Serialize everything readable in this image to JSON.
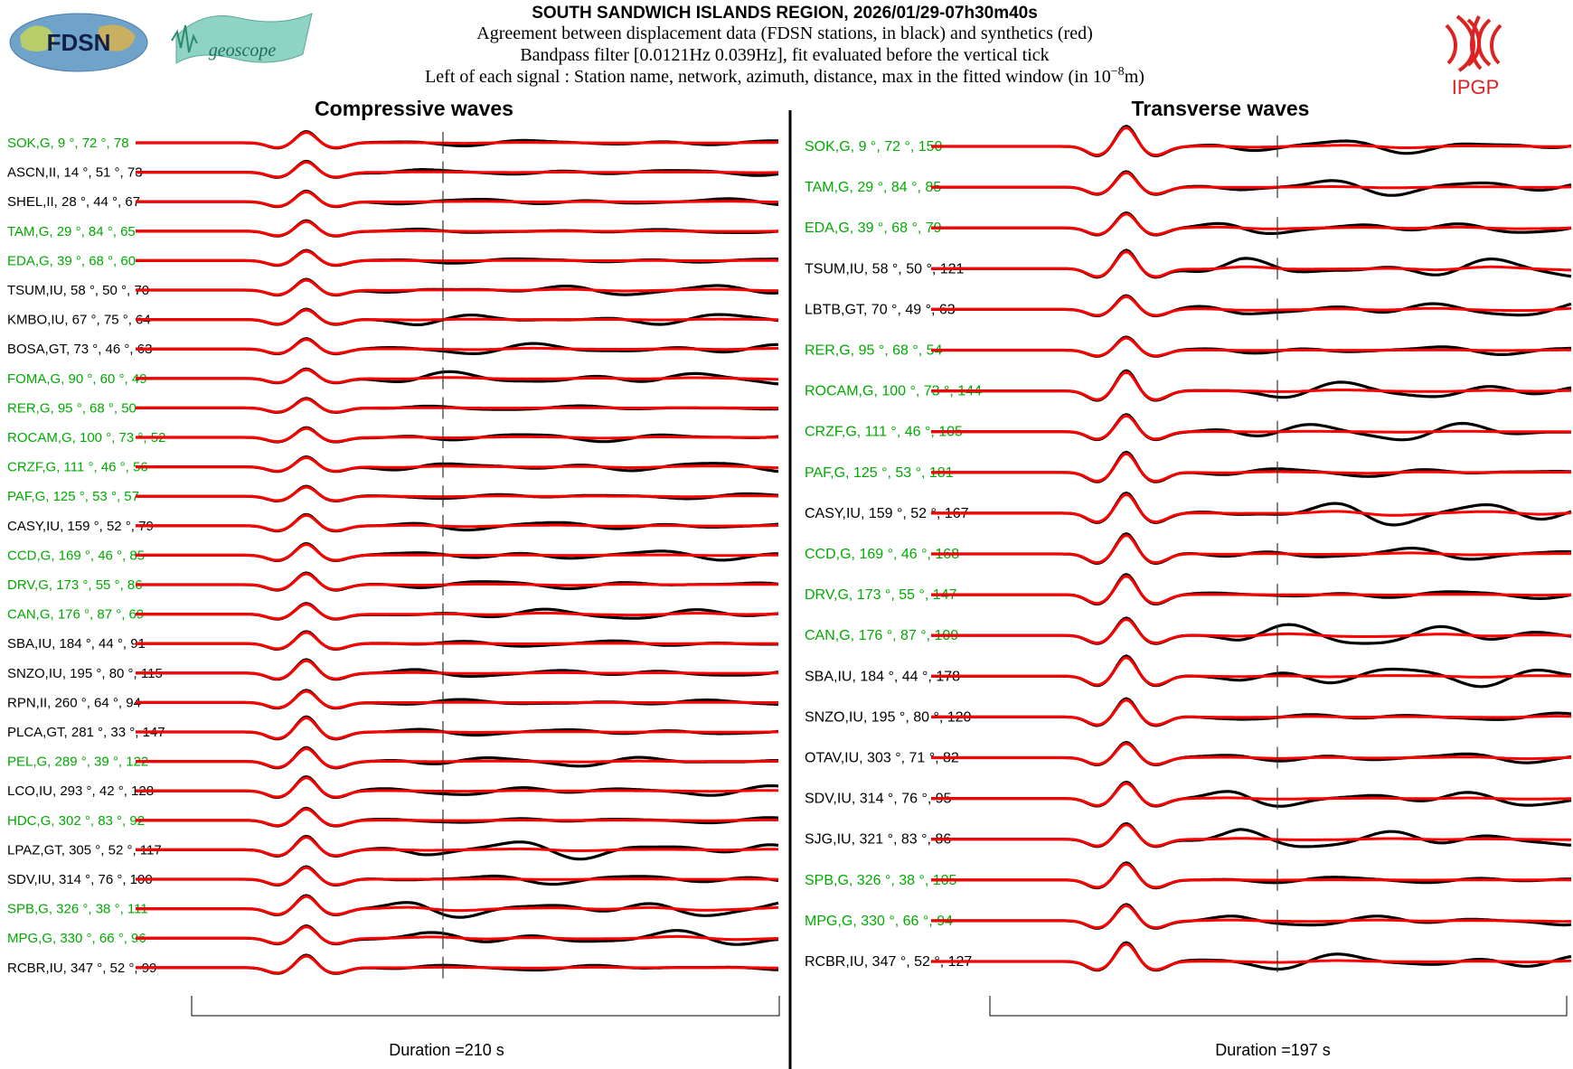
{
  "header": {
    "title": "SOUTH SANDWICH ISLANDS REGION, 2026/01/29-07h30m40s",
    "line1": "Agreement between displacement data (FDSN stations, in black) and synthetics (red)",
    "line2": "Bandpass filter [0.0121Hz 0.039Hz], fit evaluated before the vertical tick",
    "line3_prefix": "Left of each signal : Station name, network, azimuth, distance, max in the fitted window (in 10",
    "line3_exp": "−8",
    "line3_suffix": "m)"
  },
  "logos": {
    "fdsn": "FDSN",
    "geoscope": "geoscope",
    "ipgp": "IPGP"
  },
  "colors": {
    "data": "#000000",
    "synthetic": "#ff0000",
    "label_green": "#00aa00",
    "label_black": "#000000",
    "ipgp_red": "#e03030"
  },
  "chart_data": [
    {
      "type": "line",
      "title": "Compressive waves",
      "duration_label": "Duration =210 s",
      "duration_s": 210,
      "series_legend": [
        "data (black)",
        "synthetics (red)"
      ],
      "stations": [
        {
          "label": "SOK,G, 9 °, 72 °, 78",
          "name": "SOK",
          "net": "G",
          "az": 9,
          "dist": 72,
          "max": 78,
          "green": true
        },
        {
          "label": "ASCN,II, 14 °, 51 °, 73",
          "name": "ASCN",
          "net": "II",
          "az": 14,
          "dist": 51,
          "max": 73,
          "green": false
        },
        {
          "label": "SHEL,II, 28 °, 44 °, 67",
          "name": "SHEL",
          "net": "II",
          "az": 28,
          "dist": 44,
          "max": 67,
          "green": false
        },
        {
          "label": "TAM,G, 29 °, 84 °, 65",
          "name": "TAM",
          "net": "G",
          "az": 29,
          "dist": 84,
          "max": 65,
          "green": true
        },
        {
          "label": "EDA,G, 39 °, 68 °, 60",
          "name": "EDA",
          "net": "G",
          "az": 39,
          "dist": 68,
          "max": 60,
          "green": true
        },
        {
          "label": "TSUM,IU, 58 °, 50 °, 70",
          "name": "TSUM",
          "net": "IU",
          "az": 58,
          "dist": 50,
          "max": 70,
          "green": false
        },
        {
          "label": "KMBO,IU, 67 °, 75 °, 64",
          "name": "KMBO",
          "net": "IU",
          "az": 67,
          "dist": 75,
          "max": 64,
          "green": false
        },
        {
          "label": "BOSA,GT, 73 °, 46 °, 63",
          "name": "BOSA",
          "net": "GT",
          "az": 73,
          "dist": 46,
          "max": 63,
          "green": false
        },
        {
          "label": "FOMA,G, 90 °, 60 °, 49",
          "name": "FOMA",
          "net": "G",
          "az": 90,
          "dist": 60,
          "max": 49,
          "green": true
        },
        {
          "label": "RER,G, 95 °, 68 °, 50",
          "name": "RER",
          "net": "G",
          "az": 95,
          "dist": 68,
          "max": 50,
          "green": true
        },
        {
          "label": "ROCAM,G, 100 °, 73 °, 52",
          "name": "ROCAM",
          "net": "G",
          "az": 100,
          "dist": 73,
          "max": 52,
          "green": true
        },
        {
          "label": "CRZF,G, 111 °, 46 °, 56",
          "name": "CRZF",
          "net": "G",
          "az": 111,
          "dist": 46,
          "max": 56,
          "green": true
        },
        {
          "label": "PAF,G, 125 °, 53 °, 57",
          "name": "PAF",
          "net": "G",
          "az": 125,
          "dist": 53,
          "max": 57,
          "green": true
        },
        {
          "label": "CASY,IU, 159 °, 52 °, 79",
          "name": "CASY",
          "net": "IU",
          "az": 159,
          "dist": 52,
          "max": 79,
          "green": false
        },
        {
          "label": "CCD,G, 169 °, 46 °, 85",
          "name": "CCD",
          "net": "G",
          "az": 169,
          "dist": 46,
          "max": 85,
          "green": true
        },
        {
          "label": "DRV,G, 173 °, 55 °, 86",
          "name": "DRV",
          "net": "G",
          "az": 173,
          "dist": 55,
          "max": 86,
          "green": true
        },
        {
          "label": "CAN,G, 176 °, 87 °, 69",
          "name": "CAN",
          "net": "G",
          "az": 176,
          "dist": 87,
          "max": 69,
          "green": true
        },
        {
          "label": "SBA,IU, 184 °, 44 °, 91",
          "name": "SBA",
          "net": "IU",
          "az": 184,
          "dist": 44,
          "max": 91,
          "green": false
        },
        {
          "label": "SNZO,IU, 195 °, 80 °, 115",
          "name": "SNZO",
          "net": "IU",
          "az": 195,
          "dist": 80,
          "max": 115,
          "green": false
        },
        {
          "label": "RPN,II, 260 °, 64 °, 94",
          "name": "RPN",
          "net": "II",
          "az": 260,
          "dist": 64,
          "max": 94,
          "green": false
        },
        {
          "label": "PLCA,GT, 281 °, 33 °, 147",
          "name": "PLCA",
          "net": "GT",
          "az": 281,
          "dist": 33,
          "max": 147,
          "green": false
        },
        {
          "label": "PEL,G, 289 °, 39 °, 122",
          "name": "PEL",
          "net": "G",
          "az": 289,
          "dist": 39,
          "max": 122,
          "green": true
        },
        {
          "label": "LCO,IU, 293 °, 42 °, 128",
          "name": "LCO",
          "net": "IU",
          "az": 293,
          "dist": 42,
          "max": 128,
          "green": false
        },
        {
          "label": "HDC,G, 302 °, 83 °, 92",
          "name": "HDC",
          "net": "G",
          "az": 302,
          "dist": 83,
          "max": 92,
          "green": true
        },
        {
          "label": "LPAZ,GT, 305 °, 52 °, 117",
          "name": "LPAZ",
          "net": "GT",
          "az": 305,
          "dist": 52,
          "max": 117,
          "green": false
        },
        {
          "label": "SDV,IU, 314 °, 76 °, 100",
          "name": "SDV",
          "net": "IU",
          "az": 314,
          "dist": 76,
          "max": 100,
          "green": false
        },
        {
          "label": "SPB,G, 326 °, 38 °, 111",
          "name": "SPB",
          "net": "G",
          "az": 326,
          "dist": 38,
          "max": 111,
          "green": true
        },
        {
          "label": "MPG,G, 330 °, 66 °, 96",
          "name": "MPG",
          "net": "G",
          "az": 330,
          "dist": 66,
          "max": 96,
          "green": true
        },
        {
          "label": "RCBR,IU, 347 °, 52 °, 99",
          "name": "RCBR",
          "net": "IU",
          "az": 347,
          "dist": 52,
          "max": 99,
          "green": false
        }
      ]
    },
    {
      "type": "line",
      "title": "Transverse waves",
      "duration_label": "Duration =197 s",
      "duration_s": 197,
      "series_legend": [
        "data (black)",
        "synthetics (red)"
      ],
      "stations": [
        {
          "label": "SOK,G, 9 °, 72 °, 150",
          "name": "SOK",
          "net": "G",
          "az": 9,
          "dist": 72,
          "max": 150,
          "green": true
        },
        {
          "label": "TAM,G, 29 °, 84 °, 85",
          "name": "TAM",
          "net": "G",
          "az": 29,
          "dist": 84,
          "max": 85,
          "green": true
        },
        {
          "label": "EDA,G, 39 °, 68 °, 79",
          "name": "EDA",
          "net": "G",
          "az": 39,
          "dist": 68,
          "max": 79,
          "green": true
        },
        {
          "label": "TSUM,IU, 58 °, 50 °, 121",
          "name": "TSUM",
          "net": "IU",
          "az": 58,
          "dist": 50,
          "max": 121,
          "green": false
        },
        {
          "label": "LBTB,GT, 70 °, 49 °, 63",
          "name": "LBTB",
          "net": "GT",
          "az": 70,
          "dist": 49,
          "max": 63,
          "green": false
        },
        {
          "label": "RER,G, 95 °, 68 °, 54",
          "name": "RER",
          "net": "G",
          "az": 95,
          "dist": 68,
          "max": 54,
          "green": true
        },
        {
          "label": "ROCAM,G, 100 °, 73 °, 144",
          "name": "ROCAM",
          "net": "G",
          "az": 100,
          "dist": 73,
          "max": 144,
          "green": true
        },
        {
          "label": "CRZF,G, 111 °, 46 °, 105",
          "name": "CRZF",
          "net": "G",
          "az": 111,
          "dist": 46,
          "max": 105,
          "green": true
        },
        {
          "label": "PAF,G, 125 °, 53 °, 181",
          "name": "PAF",
          "net": "G",
          "az": 125,
          "dist": 53,
          "max": 181,
          "green": true
        },
        {
          "label": "CASY,IU, 159 °, 52 °, 167",
          "name": "CASY",
          "net": "IU",
          "az": 159,
          "dist": 52,
          "max": 167,
          "green": false
        },
        {
          "label": "CCD,G, 169 °, 46 °, 168",
          "name": "CCD",
          "net": "G",
          "az": 169,
          "dist": 46,
          "max": 168,
          "green": true
        },
        {
          "label": "DRV,G, 173 °, 55 °, 147",
          "name": "DRV",
          "net": "G",
          "az": 173,
          "dist": 55,
          "max": 147,
          "green": true
        },
        {
          "label": "CAN,G, 176 °, 87 °, 109",
          "name": "CAN",
          "net": "G",
          "az": 176,
          "dist": 87,
          "max": 109,
          "green": true
        },
        {
          "label": "SBA,IU, 184 °, 44 °, 178",
          "name": "SBA",
          "net": "IU",
          "az": 184,
          "dist": 44,
          "max": 178,
          "green": false
        },
        {
          "label": "SNZO,IU, 195 °, 80 °, 120",
          "name": "SNZO",
          "net": "IU",
          "az": 195,
          "dist": 80,
          "max": 120,
          "green": false
        },
        {
          "label": "OTAV,IU, 303 °, 71 °, 82",
          "name": "OTAV",
          "net": "IU",
          "az": 303,
          "dist": 71,
          "max": 82,
          "green": false
        },
        {
          "label": "SDV,IU, 314 °, 76 °, 95",
          "name": "SDV",
          "net": "IU",
          "az": 314,
          "dist": 76,
          "max": 95,
          "green": false
        },
        {
          "label": "SJG,IU, 321 °, 83 °, 86",
          "name": "SJG",
          "net": "IU",
          "az": 321,
          "dist": 83,
          "max": 86,
          "green": false
        },
        {
          "label": "SPB,G, 326 °, 38 °, 105",
          "name": "SPB",
          "net": "G",
          "az": 326,
          "dist": 38,
          "max": 105,
          "green": true
        },
        {
          "label": "MPG,G, 330 °, 66 °, 94",
          "name": "MPG",
          "net": "G",
          "az": 330,
          "dist": 66,
          "max": 94,
          "green": true
        },
        {
          "label": "RCBR,IU, 347 °, 52 °, 127",
          "name": "RCBR",
          "net": "IU",
          "az": 347,
          "dist": 52,
          "max": 127,
          "green": false
        }
      ]
    }
  ]
}
